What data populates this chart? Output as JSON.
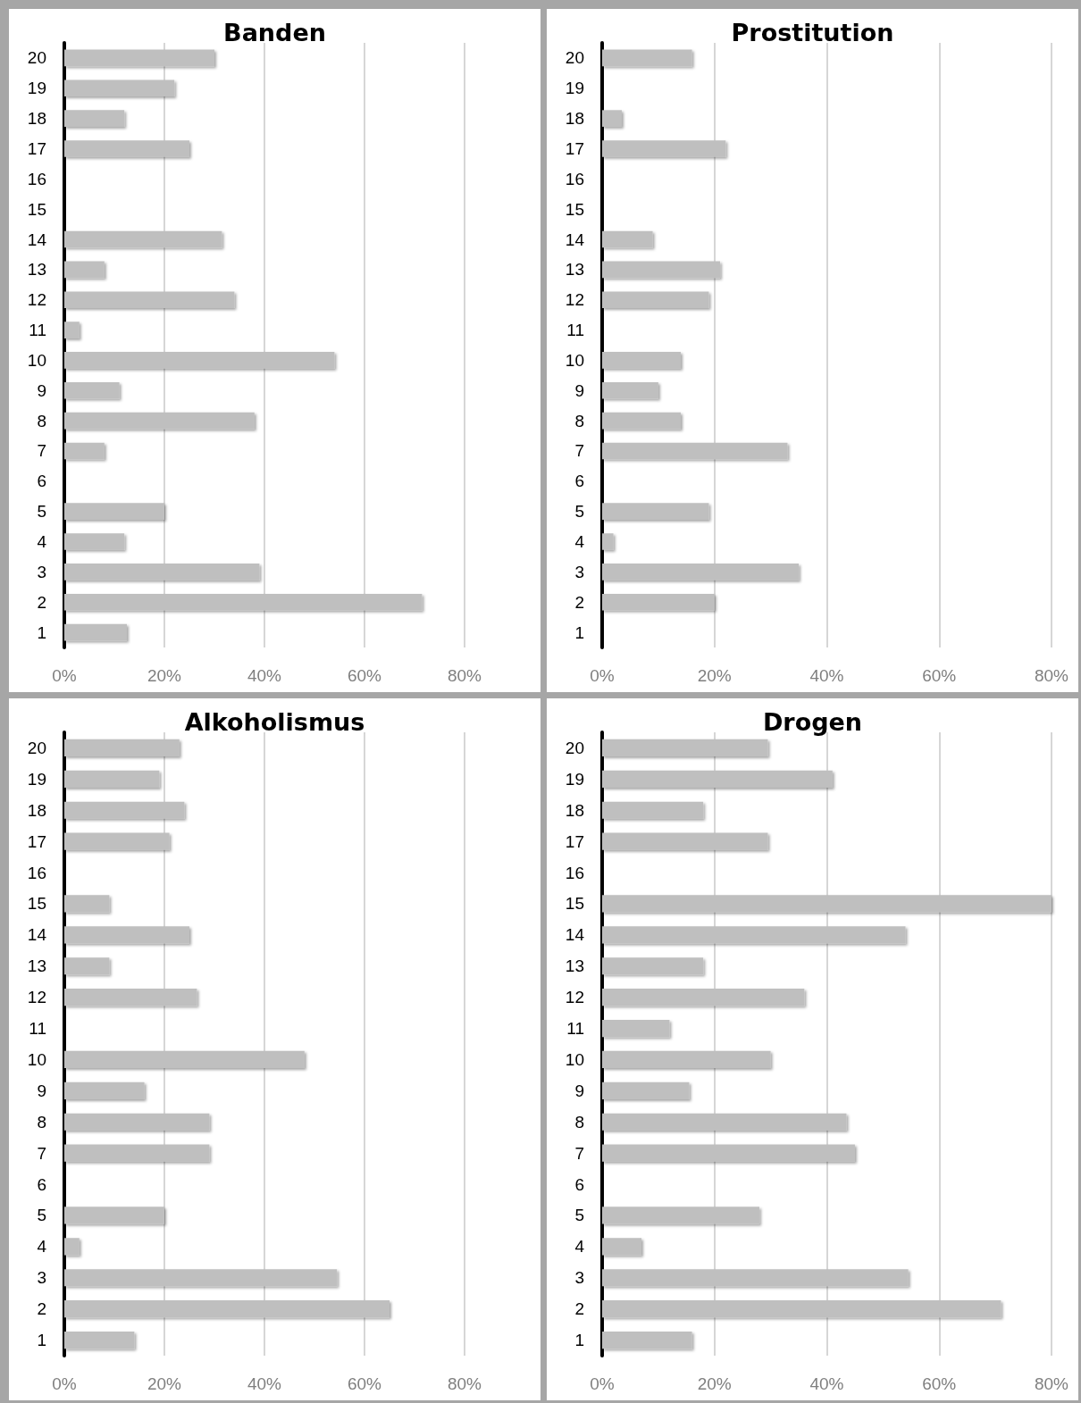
{
  "chart_data": [
    {
      "type": "bar",
      "orientation": "horizontal",
      "title": "Banden",
      "categories": [
        "20",
        "19",
        "18",
        "17",
        "16",
        "15",
        "14",
        "13",
        "12",
        "11",
        "10",
        "9",
        "8",
        "7",
        "6",
        "5",
        "4",
        "3",
        "2",
        "1"
      ],
      "values": [
        30,
        22,
        12,
        25,
        0,
        0,
        31.5,
        8,
        34,
        3,
        54,
        11,
        38,
        8,
        0,
        20,
        12,
        39,
        71.5,
        12.5
      ],
      "color": "#bfbfbf",
      "xlim": [
        0,
        80
      ],
      "xticks": [
        {
          "value": 0,
          "label": "0%"
        },
        {
          "value": 20,
          "label": "20%"
        },
        {
          "value": 40,
          "label": "40%"
        },
        {
          "value": 60,
          "label": "60%"
        },
        {
          "value": 80,
          "label": "80%"
        }
      ],
      "grid": "x"
    },
    {
      "type": "bar",
      "orientation": "horizontal",
      "title": "Prostitution",
      "categories": [
        "20",
        "19",
        "18",
        "17",
        "16",
        "15",
        "14",
        "13",
        "12",
        "11",
        "10",
        "9",
        "8",
        "7",
        "6",
        "5",
        "4",
        "3",
        "2",
        "1"
      ],
      "values": [
        16,
        0,
        3.5,
        22,
        0,
        0,
        9,
        21,
        19,
        0,
        14,
        10,
        14,
        33,
        0,
        19,
        2,
        35,
        20,
        0
      ],
      "color": "#bfbfbf",
      "xlim": [
        0,
        80
      ],
      "xticks": [
        {
          "value": 0,
          "label": "0%"
        },
        {
          "value": 20,
          "label": "20%"
        },
        {
          "value": 40,
          "label": "40%"
        },
        {
          "value": 60,
          "label": "60%"
        },
        {
          "value": 80,
          "label": "80%"
        }
      ],
      "grid": "x"
    },
    {
      "type": "bar",
      "orientation": "horizontal",
      "title": "Alkoholismus",
      "categories": [
        "20",
        "19",
        "18",
        "17",
        "16",
        "15",
        "14",
        "13",
        "12",
        "11",
        "10",
        "9",
        "8",
        "7",
        "6",
        "5",
        "4",
        "3",
        "2",
        "1"
      ],
      "values": [
        23,
        19,
        24,
        21,
        0,
        9,
        25,
        9,
        26.5,
        0,
        48,
        16,
        29,
        29,
        0,
        20,
        3,
        54.5,
        65,
        14
      ],
      "color": "#bfbfbf",
      "xlim": [
        0,
        80
      ],
      "xticks": [
        {
          "value": 0,
          "label": "0%"
        },
        {
          "value": 20,
          "label": "20%"
        },
        {
          "value": 40,
          "label": "40%"
        },
        {
          "value": 60,
          "label": "60%"
        },
        {
          "value": 80,
          "label": "80%"
        }
      ],
      "grid": "x"
    },
    {
      "type": "bar",
      "orientation": "horizontal",
      "title": "Drogen",
      "categories": [
        "20",
        "19",
        "18",
        "17",
        "16",
        "15",
        "14",
        "13",
        "12",
        "11",
        "10",
        "9",
        "8",
        "7",
        "6",
        "5",
        "4",
        "3",
        "2",
        "1"
      ],
      "values": [
        29.5,
        41,
        18,
        29.5,
        0,
        80,
        54,
        18,
        36,
        12,
        30,
        15.5,
        43.5,
        45,
        0,
        28,
        7,
        54.5,
        71,
        16
      ],
      "color": "#bfbfbf",
      "xlim": [
        0,
        80
      ],
      "xticks": [
        {
          "value": 0,
          "label": "0%"
        },
        {
          "value": 20,
          "label": "20%"
        },
        {
          "value": 40,
          "label": "40%"
        },
        {
          "value": 60,
          "label": "60%"
        },
        {
          "value": 80,
          "label": "80%"
        }
      ],
      "grid": "x"
    }
  ]
}
